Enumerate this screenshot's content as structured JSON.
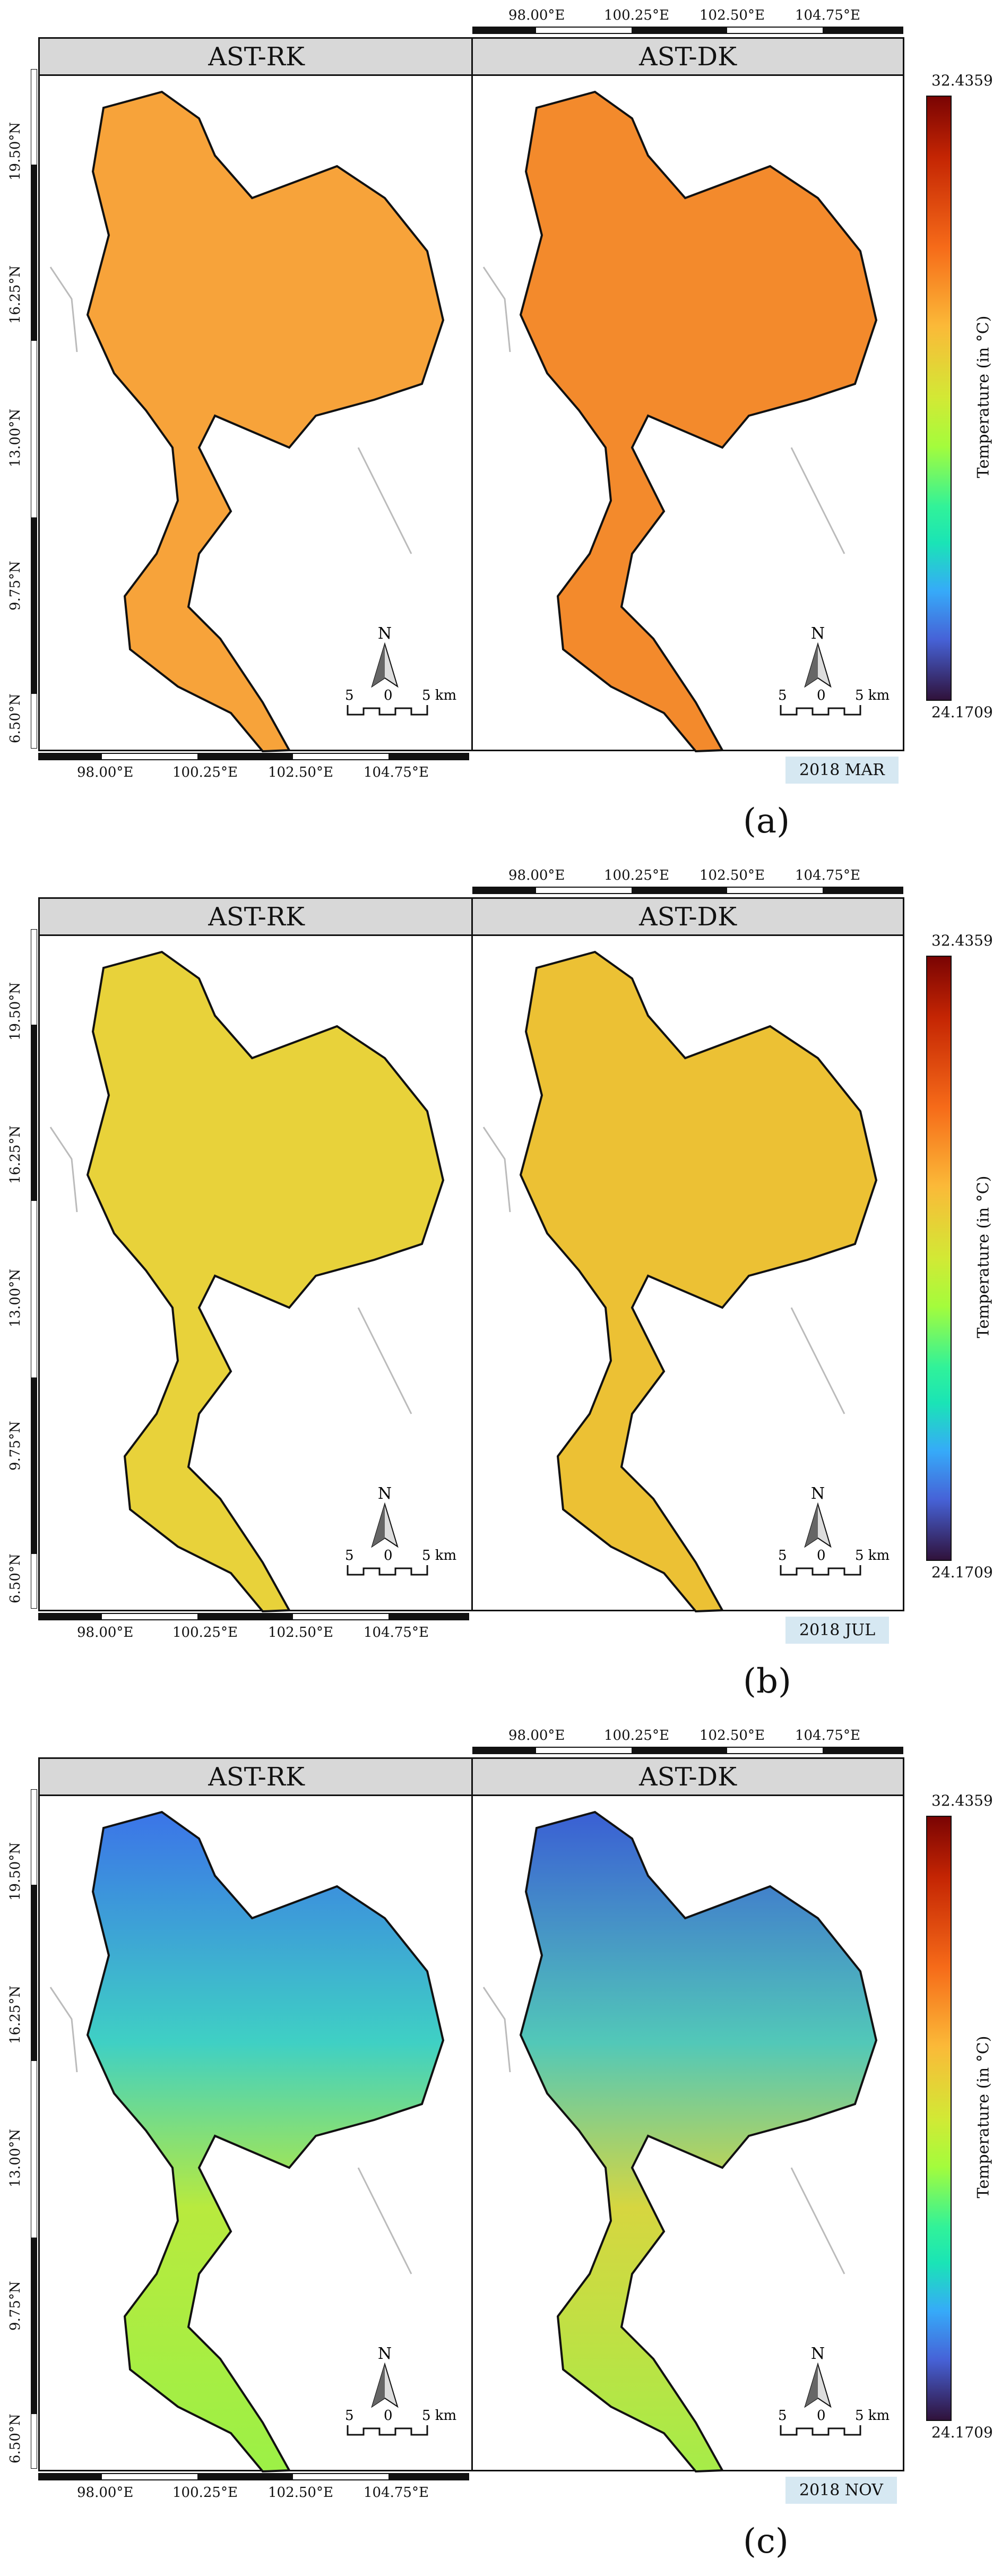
{
  "colorbar": {
    "max": "32.4359",
    "min": "24.1709",
    "title": "Temperature (in °C)",
    "colors": [
      "#7a0403",
      "#c42503",
      "#f66b19",
      "#fbb938",
      "#d2e935",
      "#a4fc3c",
      "#31f299",
      "#1ae4b6",
      "#36aaf9",
      "#4662d7",
      "#30123b"
    ]
  },
  "lon_ticks": [
    "98.00°E",
    "100.25°E",
    "102.50°E",
    "104.75°E"
  ],
  "lat_ticks": [
    "19.50°N",
    "16.25°N",
    "13.00°N",
    "9.75°N",
    "6.50°N"
  ],
  "scale_bar": {
    "left": "5",
    "mid": "0",
    "right": "5 km"
  },
  "north_arrow": {
    "label": "N"
  },
  "panels": [
    {
      "label": "(a)",
      "date": "2018 MAR",
      "left_title": "AST-RK",
      "right_title": "AST-DK",
      "fill_left": "#f7a33a",
      "fill_right": "#f38a2c"
    },
    {
      "label": "(b)",
      "date": "2018 JUL",
      "left_title": "AST-RK",
      "right_title": "AST-DK",
      "fill_left": "#e8d23a",
      "fill_right": "#ecc134"
    },
    {
      "label": "(c)",
      "date": "2018 NOV",
      "left_title": "AST-RK",
      "right_title": "AST-DK",
      "fill_left": "#c2e83c",
      "fill_right": "#b6e24a"
    }
  ]
}
